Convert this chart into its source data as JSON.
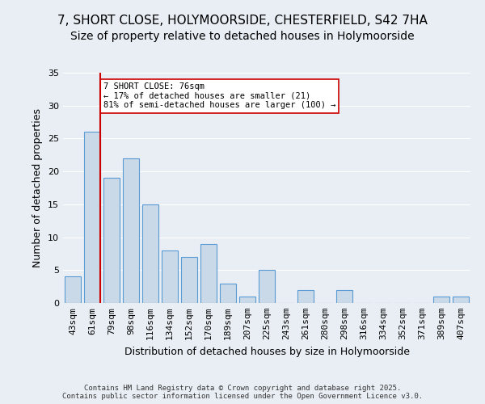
{
  "title": "7, SHORT CLOSE, HOLYMOORSIDE, CHESTERFIELD, S42 7HA",
  "subtitle": "Size of property relative to detached houses in Holymoorside",
  "xlabel": "Distribution of detached houses by size in Holymoorside",
  "ylabel": "Number of detached properties",
  "bins": [
    "43sqm",
    "61sqm",
    "79sqm",
    "98sqm",
    "116sqm",
    "134sqm",
    "152sqm",
    "170sqm",
    "189sqm",
    "207sqm",
    "225sqm",
    "243sqm",
    "261sqm",
    "280sqm",
    "298sqm",
    "316sqm",
    "334sqm",
    "352sqm",
    "371sqm",
    "389sqm",
    "407sqm"
  ],
  "values": [
    4,
    26,
    19,
    22,
    15,
    8,
    7,
    9,
    3,
    1,
    5,
    0,
    2,
    0,
    2,
    0,
    0,
    0,
    0,
    1,
    1
  ],
  "bar_color": "#c9d9e8",
  "bar_edge_color": "#5b9bd5",
  "property_label": "7 SHORT CLOSE: 76sqm",
  "annotation_line1": "← 17% of detached houses are smaller (21)",
  "annotation_line2": "81% of semi-detached houses are larger (100) →",
  "vline_color": "#cc0000",
  "ylim": [
    0,
    35
  ],
  "yticks": [
    0,
    5,
    10,
    15,
    20,
    25,
    30,
    35
  ],
  "bg_color": "#e8eef4",
  "footer": "Contains HM Land Registry data © Crown copyright and database right 2025.\nContains public sector information licensed under the Open Government Licence v3.0.",
  "title_fontsize": 11,
  "subtitle_fontsize": 10,
  "axis_label_fontsize": 9,
  "tick_fontsize": 8,
  "footer_fontsize": 6.5
}
